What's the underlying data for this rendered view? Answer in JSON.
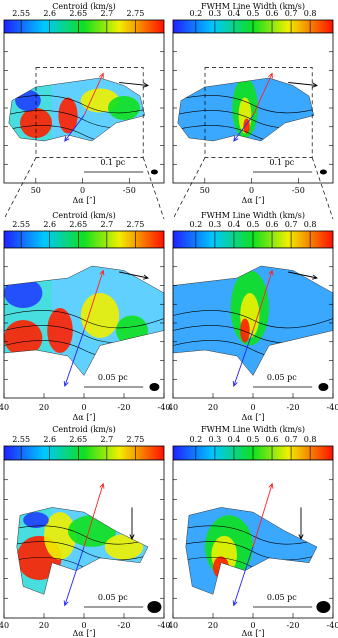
{
  "panels": [
    {
      "colorbar": {
        "title": "Centroid (km/s)",
        "range": [
          2.52,
          2.8
        ],
        "ticks": [
          2.55,
          2.6,
          2.65,
          2.7,
          2.75
        ]
      },
      "xlim": [
        84,
        -87
      ],
      "xticks": [
        50,
        0,
        -50
      ],
      "xlabel": "Δα [″]",
      "scalebar": "0.1 pc"
    },
    {
      "colorbar": {
        "title": "FWHM Line Width (km/s)",
        "range": [
          0.08,
          0.92
        ],
        "ticks": [
          0.2,
          0.3,
          0.4,
          0.5,
          0.6,
          0.7,
          0.8
        ]
      },
      "xlim": [
        84,
        -87
      ],
      "xticks": [
        50,
        0,
        -50
      ],
      "xlabel": "Δα [″]",
      "scalebar": "0.1 pc"
    },
    {
      "colorbar": {
        "title": "Centroid (km/s)",
        "range": [
          2.52,
          2.8
        ],
        "ticks": [
          2.55,
          2.6,
          2.65,
          2.7,
          2.75
        ]
      },
      "xlim": [
        40,
        -40
      ],
      "xticks": [
        40,
        20,
        0,
        -20,
        -40
      ],
      "xlabel": "Δα [″]",
      "scalebar": "0.05 pc"
    },
    {
      "colorbar": {
        "title": "FWHM Line Width (km/s)",
        "range": [
          0.08,
          0.92
        ],
        "ticks": [
          0.2,
          0.3,
          0.4,
          0.5,
          0.6,
          0.7,
          0.8
        ]
      },
      "xlim": [
        40,
        -40
      ],
      "xticks": [
        40,
        20,
        0,
        -20,
        -40
      ],
      "xlabel": "Δα [″]",
      "scalebar": "0.05 pc"
    },
    {
      "colorbar": {
        "title": "Centroid (km/s)",
        "range": [
          2.52,
          2.8
        ],
        "ticks": [
          2.55,
          2.6,
          2.65,
          2.7,
          2.75
        ]
      },
      "xlim": [
        40,
        -40
      ],
      "xticks": [
        40,
        20,
        0,
        -20,
        -40
      ],
      "xlabel": "Δα [″]",
      "scalebar": "0.05 pc"
    },
    {
      "colorbar": {
        "title": "FWHM Line Width (km/s)",
        "range": [
          0.08,
          0.92
        ],
        "ticks": [
          0.2,
          0.3,
          0.4,
          0.5,
          0.6,
          0.7,
          0.8
        ]
      },
      "xlim": [
        40,
        -40
      ],
      "xticks": [
        40,
        20,
        0,
        -20,
        -40
      ],
      "xlabel": "Δα [″]",
      "scalebar": "0.05 pc"
    }
  ]
}
